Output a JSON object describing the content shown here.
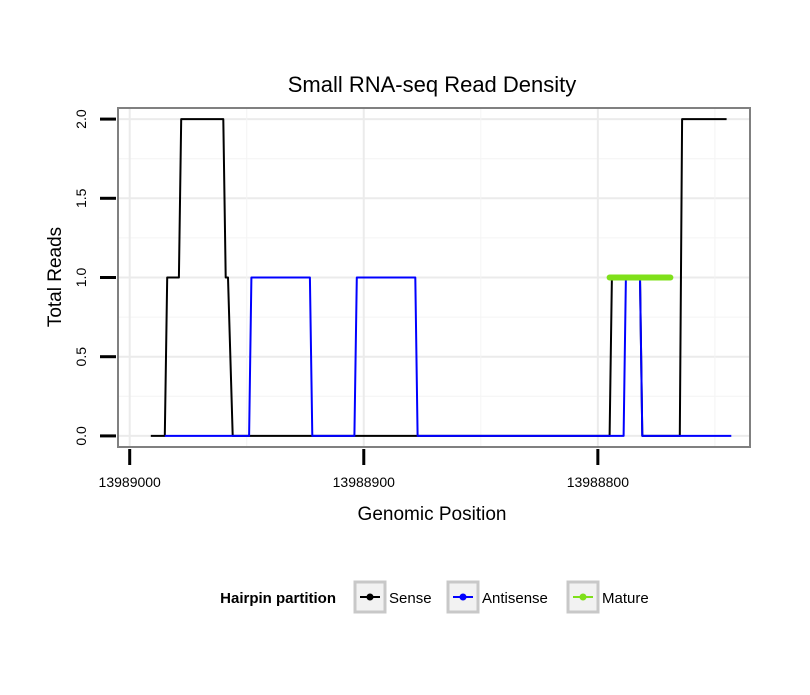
{
  "chart_data": {
    "type": "line",
    "title": "Small RNA-seq Read Density",
    "xlabel": "Genomic Position",
    "ylabel": "Total Reads",
    "xlim": [
      13989005,
      13988735
    ],
    "ylim": [
      -0.07,
      2.07
    ],
    "x_ticks": [
      13989000,
      13988900,
      13988800
    ],
    "x_tick_labels": [
      "13989000",
      "13988900",
      "13988800"
    ],
    "y_ticks": [
      0,
      0.5,
      1,
      1.5,
      2
    ],
    "y_tick_labels": [
      "0.0",
      "0.5",
      "1.0",
      "1.5",
      "2.0"
    ],
    "grid": true,
    "legend": {
      "title": "Hairpin partition",
      "position": "bottom",
      "entries": [
        "Sense",
        "Antisense",
        "Mature"
      ]
    },
    "series": [
      {
        "name": "Sense",
        "color": "#000000",
        "width": 2,
        "x": [
          13988991,
          13988985,
          13988984,
          13988979,
          13988978,
          13988960,
          13988959,
          13988958,
          13988956,
          13988795,
          13988794,
          13988790,
          13988789,
          13988782,
          13988781,
          13988765,
          13988764,
          13988745
        ],
        "values": [
          0,
          0,
          1,
          1,
          2,
          2,
          1,
          1,
          0,
          0,
          1,
          1,
          1,
          1,
          0,
          0,
          2,
          2
        ]
      },
      {
        "name": "Antisense",
        "color": "#0000ff",
        "width": 2,
        "x": [
          13988985,
          13988949,
          13988948,
          13988923,
          13988922,
          13988904,
          13988903,
          13988878,
          13988877,
          13988789,
          13988788,
          13988782,
          13988781,
          13988764,
          13988763,
          13988743
        ],
        "values": [
          0,
          0,
          1,
          1,
          0,
          0,
          1,
          1,
          0,
          0,
          1,
          1,
          0,
          0,
          0,
          0
        ]
      },
      {
        "name": "Mature",
        "color": "#7fe01a",
        "width": 6,
        "x": [
          13988795,
          13988769
        ],
        "values": [
          1,
          1
        ]
      }
    ]
  }
}
